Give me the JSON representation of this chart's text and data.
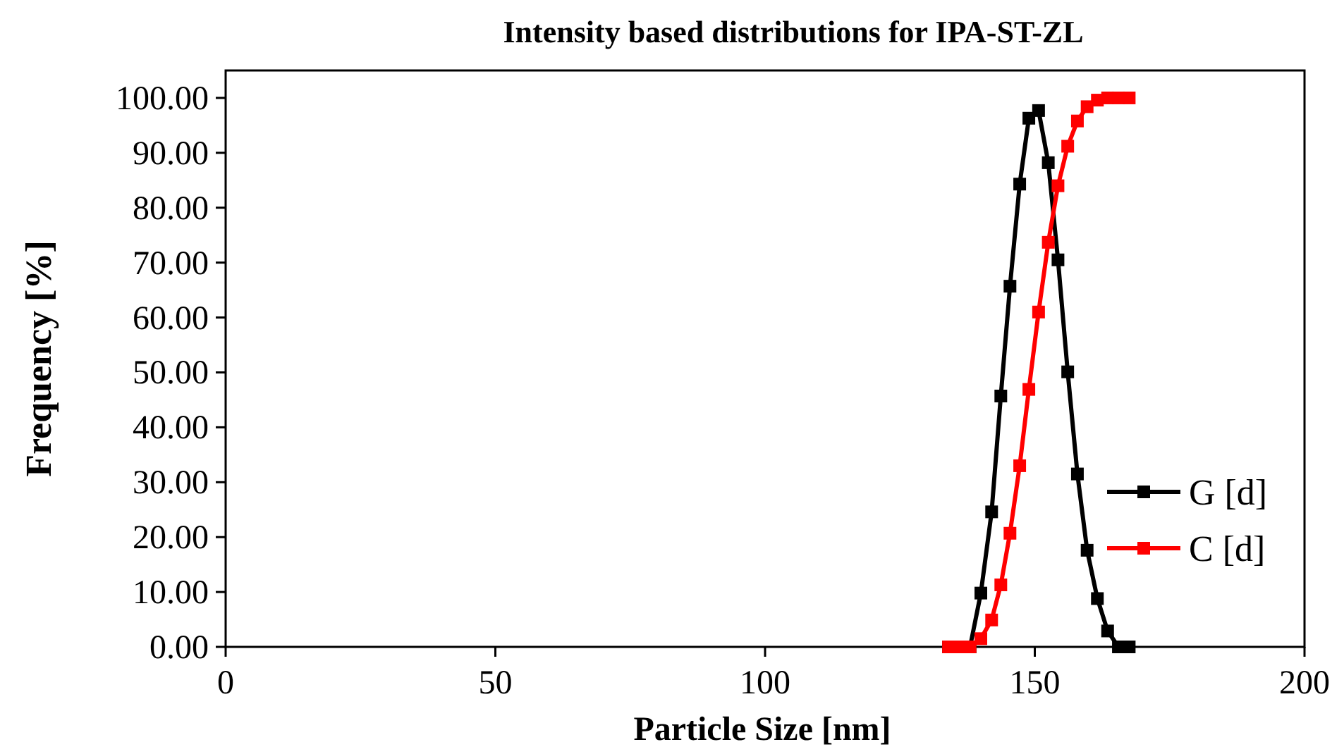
{
  "chart_data": {
    "type": "line",
    "title": "Intensity based distributions for IPA-ST-ZL",
    "xlabel": "Particle Size [nm]",
    "ylabel": "Frequency [%]",
    "x": [
      134,
      136,
      138,
      140,
      142,
      143.7,
      145.4,
      147.2,
      148.9,
      150.7,
      152.5,
      154.3,
      156.1,
      157.9,
      159.7,
      161.6,
      163.5,
      165.5,
      167.5
    ],
    "series": [
      {
        "name": "G [d]",
        "color": "#000000",
        "values": [
          0,
          0,
          0,
          9.8,
          24.6,
          45.7,
          65.7,
          84.3,
          96.3,
          97.7,
          88.2,
          70.5,
          50.1,
          31.5,
          17.6,
          8.8,
          2.9,
          0,
          0
        ]
      },
      {
        "name": "C [d]",
        "color": "#ff0000",
        "values": [
          0,
          0,
          0,
          1.5,
          4.9,
          11.3,
          20.7,
          33,
          46.9,
          61,
          73.7,
          84,
          91.2,
          95.8,
          98.4,
          99.6,
          100,
          100,
          100
        ]
      }
    ],
    "xlim": [
      0,
      200
    ],
    "xticks": [
      0,
      50,
      100,
      150,
      200
    ],
    "ylim": [
      0,
      105
    ],
    "yticks": [
      {
        "value": 0,
        "label": "0.00"
      },
      {
        "value": 10,
        "label": "10.00"
      },
      {
        "value": 20,
        "label": "20.00"
      },
      {
        "value": 30,
        "label": "30.00"
      },
      {
        "value": 40,
        "label": "40.00"
      },
      {
        "value": 50,
        "label": "50.00"
      },
      {
        "value": 60,
        "label": "60.00"
      },
      {
        "value": 70,
        "label": "70.00"
      },
      {
        "value": 80,
        "label": "80.00"
      },
      {
        "value": 90,
        "label": "90.00"
      },
      {
        "value": 100,
        "label": "100.00"
      }
    ],
    "grid": false,
    "legend": "right",
    "marker": "square",
    "line_style": "solid"
  }
}
